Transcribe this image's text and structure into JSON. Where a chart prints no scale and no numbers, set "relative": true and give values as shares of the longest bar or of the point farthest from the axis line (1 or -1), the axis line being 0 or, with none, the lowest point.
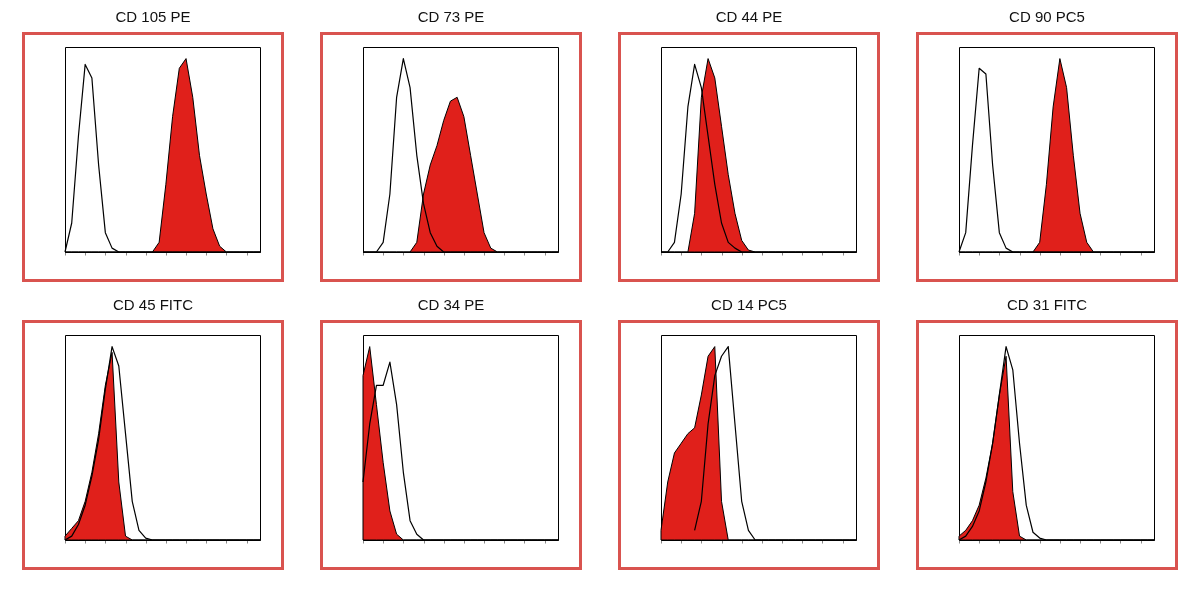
{
  "chart_data": [
    {
      "type": "area",
      "title": "CD 105 PE",
      "relative": true,
      "categories": [
        null,
        null,
        null,
        null,
        null,
        null,
        null,
        null,
        null,
        null,
        null,
        null,
        null,
        null,
        null,
        null,
        null,
        null,
        null,
        null,
        null,
        null,
        null,
        null,
        null,
        null,
        null,
        null,
        null,
        null
      ],
      "series": [
        {
          "color": "#e0201b",
          "values": [
            0,
            0,
            0,
            0,
            0,
            0,
            0,
            0,
            0,
            0,
            0,
            0,
            0,
            0,
            0.05,
            0.35,
            0.7,
            0.95,
            1.0,
            0.8,
            0.5,
            0.3,
            0.12,
            0.03,
            0,
            0,
            0,
            0,
            0,
            0
          ]
        },
        {
          "type": "line",
          "color": "#000000",
          "values": [
            0,
            0.15,
            0.6,
            0.97,
            0.9,
            0.45,
            0.1,
            0.02,
            0,
            0,
            0,
            0,
            0,
            0,
            0,
            0,
            0,
            0,
            0,
            0,
            0,
            0,
            0,
            0,
            0,
            0,
            0,
            0,
            0,
            0
          ]
        }
      ]
    },
    {
      "type": "area",
      "title": "CD 73 PE",
      "relative": true,
      "categories": [
        null,
        null,
        null,
        null,
        null,
        null,
        null,
        null,
        null,
        null,
        null,
        null,
        null,
        null,
        null,
        null,
        null,
        null,
        null,
        null,
        null,
        null,
        null,
        null,
        null,
        null,
        null,
        null,
        null,
        null
      ],
      "series": [
        {
          "color": "#e0201b",
          "values": [
            0,
            0,
            0,
            0,
            0,
            0,
            0,
            0,
            0.05,
            0.3,
            0.45,
            0.55,
            0.68,
            0.78,
            0.8,
            0.7,
            0.5,
            0.3,
            0.1,
            0.02,
            0,
            0,
            0,
            0,
            0,
            0,
            0,
            0,
            0,
            0
          ]
        },
        {
          "type": "line",
          "color": "#000000",
          "values": [
            0,
            0,
            0,
            0.05,
            0.3,
            0.8,
            1.0,
            0.85,
            0.5,
            0.25,
            0.1,
            0.03,
            0,
            0,
            0,
            0,
            0,
            0,
            0,
            0,
            0,
            0,
            0,
            0,
            0,
            0,
            0,
            0,
            0,
            0
          ]
        }
      ]
    },
    {
      "type": "area",
      "title": "CD 44 PE",
      "relative": true,
      "categories": [
        null,
        null,
        null,
        null,
        null,
        null,
        null,
        null,
        null,
        null,
        null,
        null,
        null,
        null,
        null,
        null,
        null,
        null,
        null,
        null,
        null,
        null,
        null,
        null,
        null,
        null,
        null,
        null,
        null,
        null
      ],
      "series": [
        {
          "color": "#e0201b",
          "values": [
            0,
            0,
            0,
            0,
            0,
            0.2,
            0.8,
            1.0,
            0.9,
            0.65,
            0.4,
            0.2,
            0.06,
            0.01,
            0,
            0,
            0,
            0,
            0,
            0,
            0,
            0,
            0,
            0,
            0,
            0,
            0,
            0,
            0,
            0
          ]
        },
        {
          "type": "line",
          "color": "#000000",
          "values": [
            0,
            0,
            0.05,
            0.3,
            0.75,
            0.97,
            0.85,
            0.6,
            0.35,
            0.15,
            0.05,
            0.02,
            0,
            0,
            0,
            0,
            0,
            0,
            0,
            0,
            0,
            0,
            0,
            0,
            0,
            0,
            0,
            0,
            0,
            0
          ]
        }
      ]
    },
    {
      "type": "area",
      "title": "CD 90 PC5",
      "relative": true,
      "categories": [
        null,
        null,
        null,
        null,
        null,
        null,
        null,
        null,
        null,
        null,
        null,
        null,
        null,
        null,
        null,
        null,
        null,
        null,
        null,
        null,
        null,
        null,
        null,
        null,
        null,
        null,
        null,
        null,
        null,
        null
      ],
      "series": [
        {
          "color": "#e0201b",
          "values": [
            0,
            0,
            0,
            0,
            0,
            0,
            0,
            0,
            0,
            0,
            0,
            0,
            0.05,
            0.35,
            0.75,
            1.0,
            0.85,
            0.5,
            0.2,
            0.05,
            0,
            0,
            0,
            0,
            0,
            0,
            0,
            0,
            0,
            0
          ]
        },
        {
          "type": "line",
          "color": "#000000",
          "values": [
            0,
            0.1,
            0.55,
            0.95,
            0.92,
            0.45,
            0.1,
            0.02,
            0,
            0,
            0,
            0,
            0,
            0,
            0,
            0,
            0,
            0,
            0,
            0,
            0,
            0,
            0,
            0,
            0,
            0,
            0,
            0,
            0,
            0
          ]
        }
      ]
    },
    {
      "type": "area",
      "title": "CD 45 FITC",
      "relative": true,
      "categories": [
        null,
        null,
        null,
        null,
        null,
        null,
        null,
        null,
        null,
        null,
        null,
        null,
        null,
        null,
        null,
        null,
        null,
        null,
        null,
        null,
        null,
        null,
        null,
        null,
        null,
        null,
        null,
        null,
        null,
        null
      ],
      "series": [
        {
          "color": "#e0201b",
          "values": [
            0.02,
            0.06,
            0.1,
            0.2,
            0.35,
            0.55,
            0.8,
            0.97,
            0.3,
            0.02,
            0,
            0,
            0,
            0,
            0,
            0,
            0,
            0,
            0,
            0,
            0,
            0,
            0,
            0,
            0,
            0,
            0,
            0,
            0,
            0
          ]
        },
        {
          "type": "line",
          "color": "#000000",
          "values": [
            0,
            0.02,
            0.08,
            0.18,
            0.33,
            0.52,
            0.78,
            1.0,
            0.9,
            0.55,
            0.2,
            0.05,
            0.01,
            0,
            0,
            0,
            0,
            0,
            0,
            0,
            0,
            0,
            0,
            0,
            0,
            0,
            0,
            0,
            0,
            0
          ]
        }
      ]
    },
    {
      "type": "area",
      "title": "CD 34 PE",
      "relative": true,
      "categories": [
        null,
        null,
        null,
        null,
        null,
        null,
        null,
        null,
        null,
        null,
        null,
        null,
        null,
        null,
        null,
        null,
        null,
        null,
        null,
        null,
        null,
        null,
        null,
        null,
        null,
        null,
        null,
        null,
        null,
        null
      ],
      "series": [
        {
          "color": "#e0201b",
          "values": [
            0.85,
            1.0,
            0.7,
            0.4,
            0.15,
            0.03,
            0,
            0,
            0,
            0,
            0,
            0,
            0,
            0,
            0,
            0,
            0,
            0,
            0,
            0,
            0,
            0,
            0,
            0,
            0,
            0,
            0,
            0,
            0,
            0
          ]
        },
        {
          "type": "line",
          "color": "#000000",
          "values": [
            0.3,
            0.6,
            0.8,
            0.8,
            0.92,
            0.7,
            0.35,
            0.1,
            0.03,
            0,
            0,
            0,
            0,
            0,
            0,
            0,
            0,
            0,
            0,
            0,
            0,
            0,
            0,
            0,
            0,
            0,
            0,
            0,
            0,
            0
          ]
        }
      ]
    },
    {
      "type": "area",
      "title": "CD 14 PC5",
      "relative": true,
      "categories": [
        null,
        null,
        null,
        null,
        null,
        null,
        null,
        null,
        null,
        null,
        null,
        null,
        null,
        null,
        null,
        null,
        null,
        null,
        null,
        null,
        null,
        null,
        null,
        null,
        null,
        null,
        null,
        null,
        null,
        null
      ],
      "series": [
        {
          "color": "#e0201b",
          "values": [
            0.05,
            0.3,
            0.45,
            0.5,
            0.55,
            0.58,
            0.75,
            0.95,
            1.0,
            0.2,
            0,
            0,
            0,
            0,
            0,
            0,
            0,
            0,
            0,
            0,
            0,
            0,
            0,
            0,
            0,
            0,
            0,
            0,
            0,
            0
          ]
        },
        {
          "type": "line",
          "color": "#000000",
          "values": [
            null,
            null,
            null,
            null,
            null,
            0.05,
            0.2,
            0.6,
            0.85,
            0.95,
            1.0,
            0.6,
            0.2,
            0.05,
            0,
            0,
            0,
            0,
            0,
            0,
            0,
            0,
            0,
            0,
            0,
            0,
            0,
            0,
            0,
            0
          ]
        }
      ]
    },
    {
      "type": "area",
      "title": "CD 31 FITC",
      "relative": true,
      "categories": [
        null,
        null,
        null,
        null,
        null,
        null,
        null,
        null,
        null,
        null,
        null,
        null,
        null,
        null,
        null,
        null,
        null,
        null,
        null,
        null,
        null,
        null,
        null,
        null,
        null,
        null,
        null,
        null,
        null,
        null
      ],
      "series": [
        {
          "color": "#e0201b",
          "values": [
            0.02,
            0.05,
            0.1,
            0.18,
            0.32,
            0.5,
            0.75,
            0.95,
            0.25,
            0.02,
            0,
            0,
            0,
            0,
            0,
            0,
            0,
            0,
            0,
            0,
            0,
            0,
            0,
            0,
            0,
            0,
            0,
            0,
            0,
            0
          ]
        },
        {
          "type": "line",
          "color": "#000000",
          "values": [
            0,
            0.02,
            0.07,
            0.15,
            0.3,
            0.5,
            0.75,
            1.0,
            0.88,
            0.5,
            0.18,
            0.04,
            0.01,
            0,
            0,
            0,
            0,
            0,
            0,
            0,
            0,
            0,
            0,
            0,
            0,
            0,
            0,
            0,
            0,
            0
          ]
        }
      ]
    }
  ]
}
